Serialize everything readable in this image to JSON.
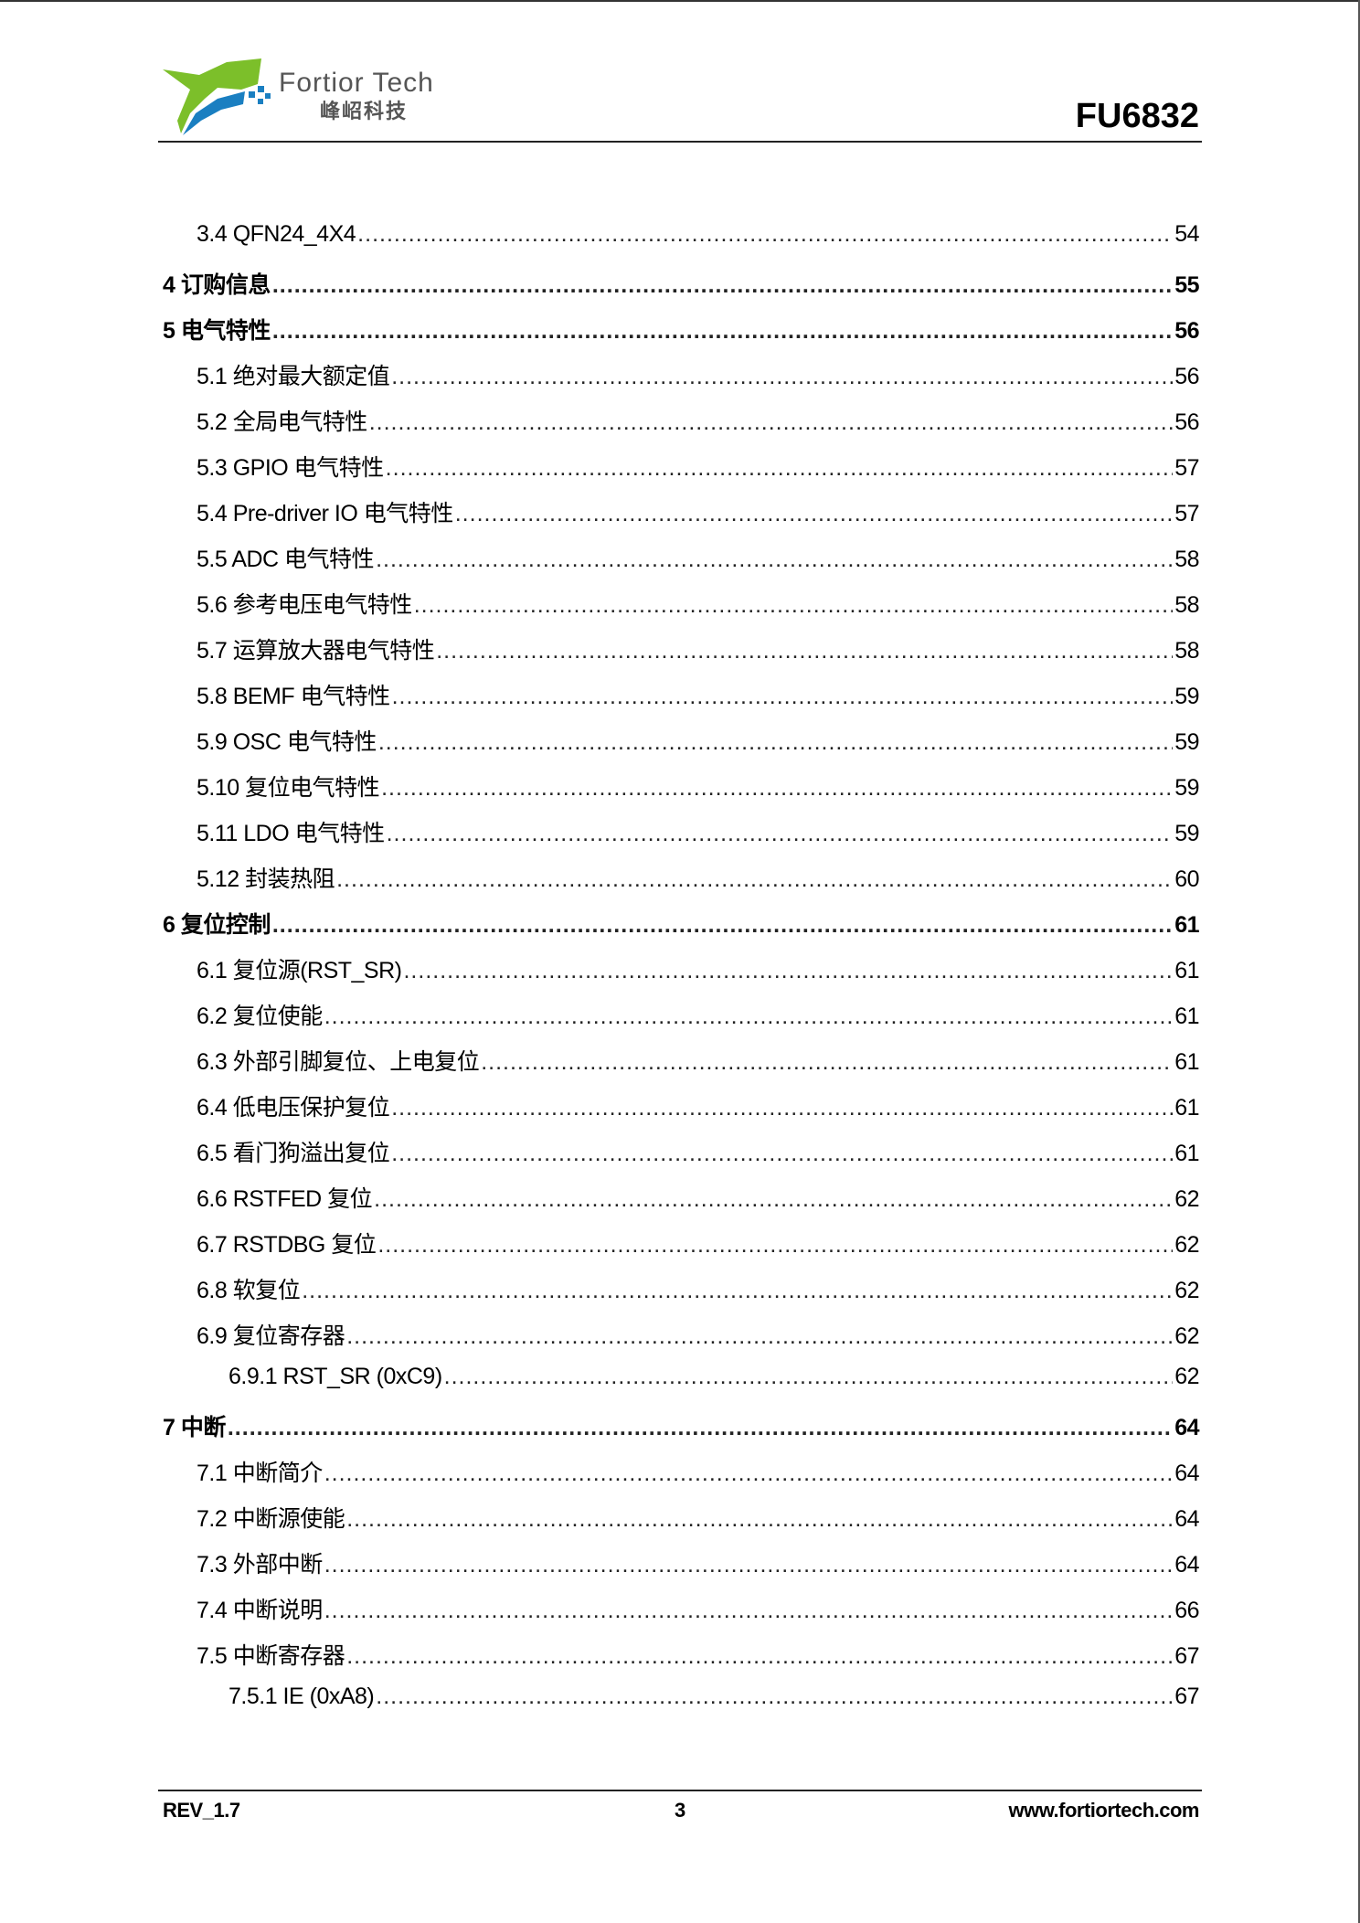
{
  "header": {
    "brand_en": "Fortior Tech",
    "brand_cn": "峰岹科技",
    "model": "FU6832",
    "colors": {
      "logo_green": "#7cbf2a",
      "logo_blue": "#1a7fc1"
    }
  },
  "toc": [
    {
      "level": 2,
      "label": "3.4 QFN24_4X4",
      "page": "54"
    },
    {
      "level": 1,
      "label": "4 订购信息",
      "page": "55"
    },
    {
      "level": 1,
      "label": "5 电气特性",
      "page": "56"
    },
    {
      "level": 2,
      "label": "5.1 绝对最大额定值",
      "page": "56"
    },
    {
      "level": 2,
      "label": "5.2 全局电气特性",
      "page": "56"
    },
    {
      "level": 2,
      "label": "5.3 GPIO 电气特性",
      "page": "57"
    },
    {
      "level": 2,
      "label": "5.4 Pre-driver IO 电气特性",
      "page": "57"
    },
    {
      "level": 2,
      "label": "5.5 ADC 电气特性",
      "page": "58"
    },
    {
      "level": 2,
      "label": "5.6 参考电压电气特性",
      "page": "58"
    },
    {
      "level": 2,
      "label": "5.7 运算放大器电气特性",
      "page": "58"
    },
    {
      "level": 2,
      "label": "5.8 BEMF 电气特性",
      "page": "59"
    },
    {
      "level": 2,
      "label": "5.9 OSC 电气特性",
      "page": "59"
    },
    {
      "level": 2,
      "label": "5.10 复位电气特性",
      "page": "59"
    },
    {
      "level": 2,
      "label": "5.11 LDO 电气特性",
      "page": "59"
    },
    {
      "level": 2,
      "label": "5.12 封装热阻",
      "page": "60"
    },
    {
      "level": 1,
      "label": "6 复位控制",
      "page": "61"
    },
    {
      "level": 2,
      "label": "6.1 复位源(RST_SR)",
      "page": "61"
    },
    {
      "level": 2,
      "label": "6.2 复位使能",
      "page": "61"
    },
    {
      "level": 2,
      "label": "6.3 外部引脚复位、上电复位",
      "page": "61"
    },
    {
      "level": 2,
      "label": "6.4 低电压保护复位",
      "page": "61"
    },
    {
      "level": 2,
      "label": "6.5 看门狗溢出复位",
      "page": "61"
    },
    {
      "level": 2,
      "label": "6.6 RSTFED 复位",
      "page": "62"
    },
    {
      "level": 2,
      "label": "6.7 RSTDBG 复位",
      "page": "62"
    },
    {
      "level": 2,
      "label": "6.8 软复位",
      "page": "62"
    },
    {
      "level": 2,
      "label": "6.9 复位寄存器",
      "page": "62"
    },
    {
      "level": 3,
      "label": "6.9.1 RST_SR (0xC9)",
      "page": "62"
    },
    {
      "level": 1,
      "label": "7 中断",
      "page": "64"
    },
    {
      "level": 2,
      "label": "7.1 中断简介",
      "page": "64"
    },
    {
      "level": 2,
      "label": "7.2 中断源使能",
      "page": "64"
    },
    {
      "level": 2,
      "label": "7.3 外部中断",
      "page": "64"
    },
    {
      "level": 2,
      "label": "7.4 中断说明",
      "page": "66"
    },
    {
      "level": 2,
      "label": "7.5 中断寄存器",
      "page": "67"
    },
    {
      "level": 3,
      "label": "7.5.1 IE (0xA8)",
      "page": "67"
    }
  ],
  "footer": {
    "revision": "REV_1.7",
    "page_number": "3",
    "website": "www.fortiortech.com"
  }
}
